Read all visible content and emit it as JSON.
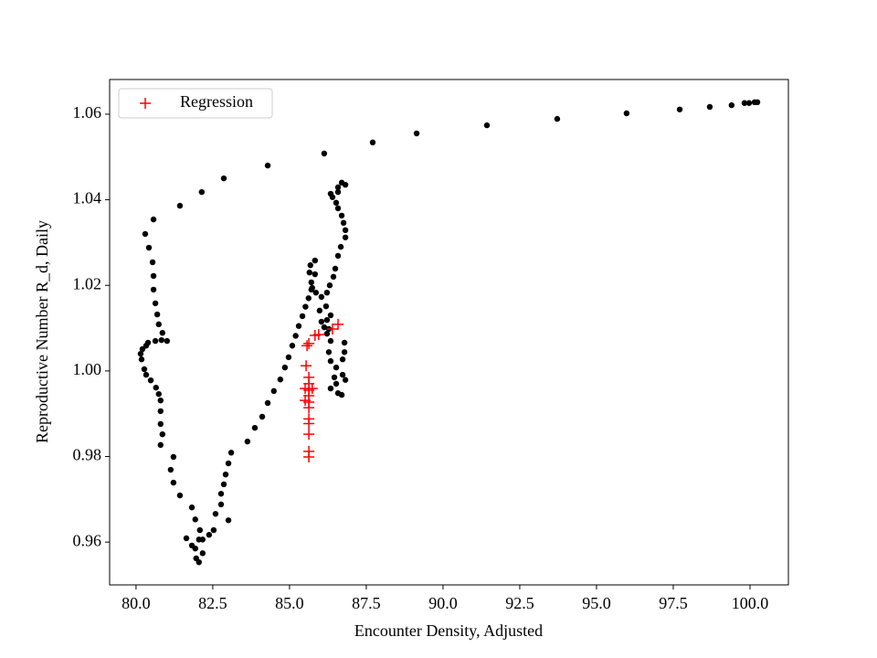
{
  "chart_data": {
    "type": "scatter",
    "xlabel": "Encounter Density, Adjusted",
    "ylabel": "Reproductive Number R_d, Daily",
    "xlim": [
      79.14,
      101.25
    ],
    "ylim": [
      0.95,
      1.0681
    ],
    "xticks": [
      {
        "value": 80,
        "label": "80.0"
      },
      82.5,
      {
        "value": 85,
        "label": "85.0"
      },
      87.5,
      {
        "value": 90,
        "label": "90.0"
      },
      92.5,
      {
        "value": 95,
        "label": "95.0"
      },
      97.5,
      {
        "value": 100,
        "label": "100.0"
      }
    ],
    "yticks": [
      0.96,
      0.98,
      {
        "value": 1,
        "label": "1.00"
      },
      1.02,
      1.04,
      1.06
    ],
    "legend": "upper left",
    "series": [
      {
        "color": "#000000",
        "marker": "o",
        "x": [
          100.24,
          100.15,
          99.97,
          99.82,
          99.4,
          98.69,
          97.71,
          95.98,
          93.72,
          91.43,
          89.14,
          87.71,
          86.13,
          84.29,
          82.86,
          82.14,
          81.43,
          80.57,
          80.3,
          80.42,
          80.54,
          80.57,
          80.57,
          80.63,
          80.69,
          80.74,
          80.86,
          81.01,
          80.83,
          80.63,
          80.39,
          80.33,
          80.21,
          80.15,
          80.18,
          80.27,
          80.33,
          80.48,
          80.65,
          80.74,
          80.8,
          80.8,
          80.8,
          80.86,
          80.8,
          81.22,
          81.13,
          81.22,
          81.43,
          81.82,
          81.93,
          82.08,
          82.05,
          81.93,
          81.96,
          82.05,
          82.17,
          82.17,
          82.38,
          82.53,
          82.59,
          82.77,
          82.77,
          82.86,
          82.92,
          83.01,
          83.1,
          83.01,
          81.64,
          81.82,
          83.63,
          83.87,
          84.11,
          84.29,
          84.49,
          84.7,
          84.85,
          84.97,
          85.09,
          85.2,
          85.3,
          85.42,
          85.52,
          85.62,
          85.71,
          85.71,
          85.65,
          85.68,
          85.83,
          85.83,
          85.74,
          85.86,
          86.04,
          85.98,
          86.04,
          86.13,
          86.22,
          86.28,
          86.34,
          86.28,
          86.34,
          86.52,
          86.52,
          86.58,
          86.7,
          86.82,
          86.73,
          86.46,
          86.34,
          86.73,
          86.79,
          86.79,
          86.58,
          86.67,
          86.82,
          86.82,
          86.76,
          86.7,
          86.58,
          86.52,
          86.4,
          86.34,
          86.58,
          86.7,
          86.82,
          86.58,
          86.49,
          86.43,
          86.31,
          86.22,
          86.19,
          86.34,
          86.22
        ],
        "values": [
          1.0628,
          1.0628,
          1.0626,
          1.0626,
          1.0621,
          1.0617,
          1.0611,
          1.0602,
          1.0589,
          1.0574,
          1.0555,
          1.0534,
          1.0508,
          1.048,
          1.045,
          1.0418,
          1.0386,
          1.0354,
          1.032,
          1.0288,
          1.0254,
          1.0222,
          1.019,
          1.0158,
          1.0132,
          1.0109,
          1.0089,
          1.007,
          1.0072,
          1.007,
          1.0066,
          1.0059,
          1.0051,
          1.004,
          1.0027,
          1.0004,
          0.9991,
          0.9978,
          0.9961,
          0.9946,
          0.9931,
          0.9906,
          0.9876,
          0.9852,
          0.9827,
          0.9799,
          0.9769,
          0.9739,
          0.9709,
          0.9681,
          0.9653,
          0.9628,
          0.9606,
          0.9585,
          0.9562,
          0.9553,
          0.9574,
          0.9606,
          0.9617,
          0.9628,
          0.9666,
          0.9688,
          0.9713,
          0.9735,
          0.9758,
          0.9784,
          0.9809,
          0.9651,
          0.9609,
          0.9592,
          0.9835,
          0.9867,
          0.9893,
          0.9925,
          0.9953,
          0.998,
          1.0008,
          1.0032,
          1.0059,
          1.0082,
          1.0105,
          1.0128,
          1.015,
          1.017,
          1.019,
          1.0207,
          1.023,
          1.0247,
          1.0258,
          1.0226,
          1.0194,
          1.0183,
          1.0173,
          1.0141,
          1.0115,
          1.0102,
          1.0087,
          1.0098,
          1.007,
          1.0044,
          1.0023,
          1.0008,
          0.997,
          0.9948,
          0.9944,
          0.9979,
          0.9991,
          0.9985,
          0.9959,
          1.0027,
          1.0044,
          1.0066,
          1.0269,
          1.029,
          1.0312,
          1.0329,
          1.0346,
          1.0363,
          1.038,
          1.0393,
          1.0406,
          1.0414,
          1.0429,
          1.044,
          1.0435,
          1.0418,
          1.0239,
          1.022,
          1.02,
          1.0183,
          1.0151,
          1.013,
          1.0119
        ]
      },
      {
        "name": "Regression",
        "color": "#ff0000",
        "marker": "+",
        "x": [
          85.54,
          85.57,
          85.63,
          85.83,
          85.95,
          86.4,
          86.58,
          85.63,
          85.63,
          85.63,
          85.63,
          85.63,
          85.63,
          85.63,
          85.63,
          85.63,
          85.63,
          85.63,
          85.51,
          85.51,
          85.74
        ],
        "values": [
          1.0012,
          1.0059,
          1.0064,
          1.0083,
          1.0085,
          1.0098,
          1.0109,
          0.9985,
          0.997,
          0.9955,
          0.9942,
          0.9927,
          0.9914,
          0.9888,
          0.9877,
          0.9852,
          0.9812,
          0.9799,
          0.9959,
          0.9931,
          0.9959
        ]
      }
    ]
  }
}
